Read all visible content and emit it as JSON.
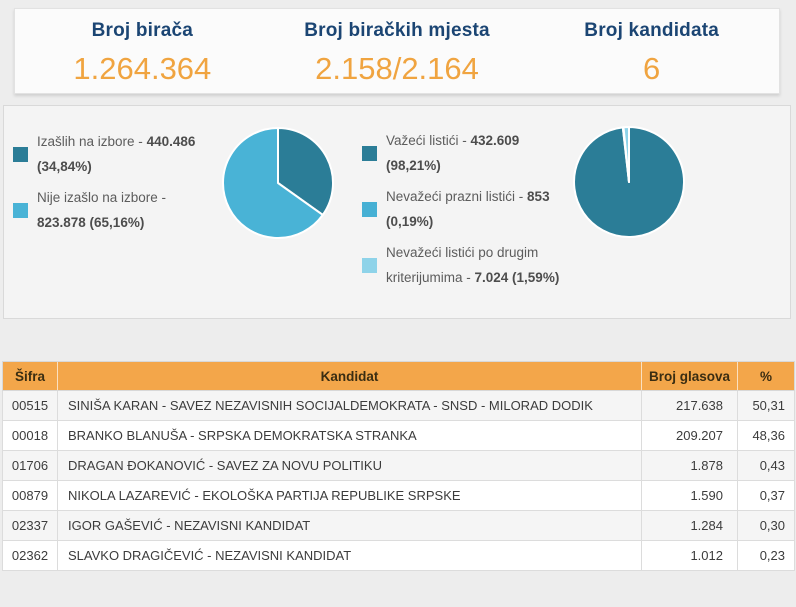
{
  "stats": [
    {
      "label": "Broj birača",
      "value": "1.264.364"
    },
    {
      "label": "Broj biračkih mjesta",
      "value": "2.158/2.164"
    },
    {
      "label": "Broj kandidata",
      "value": "6"
    }
  ],
  "colors": {
    "stat_label": "#1b4573",
    "stat_value": "#f0a440",
    "pie_dark": "#2b7d97",
    "pie_light": "#49b3d6",
    "pie_pale": "#8ed3e9",
    "table_header_bg": "#f3a64a"
  },
  "chart_data": [
    {
      "type": "pie",
      "name": "turnout",
      "slices": [
        {
          "label": "Izašlih na izbore",
          "value": 440486,
          "pct": "34,84%",
          "color": "#2b7d97"
        },
        {
          "label": "Nije izašlo na izbore",
          "value": 823878,
          "pct": "65,16%",
          "color": "#49b3d6"
        }
      ],
      "legend": [
        {
          "prefix": "Izašlih na izbore - ",
          "bold": "440.486 (34,84%)"
        },
        {
          "prefix": "Nije izašlo na izbore - ",
          "bold": "823.878 (65,16%)"
        }
      ]
    },
    {
      "type": "pie",
      "name": "ballots",
      "slices": [
        {
          "label": "Važeći listići",
          "value": 432609,
          "pct": "98,21%",
          "color": "#2b7d97"
        },
        {
          "label": "Nevažeći prazni listići",
          "value": 853,
          "pct": "0,19%",
          "color": "#46b0d4"
        },
        {
          "label": "Nevažeći listići po drugim kriterijumima",
          "value": 7024,
          "pct": "1,59%",
          "color": "#8ed3e9"
        }
      ],
      "legend": [
        {
          "prefix": "Važeći listići - ",
          "bold": "432.609 (98,21%)"
        },
        {
          "prefix": "Nevažeći prazni listići - ",
          "bold": "853 (0,19%)"
        },
        {
          "prefix": "Nevažeći listići po drugim kriterijumima - ",
          "bold": "7.024 (1,59%)"
        }
      ]
    }
  ],
  "table": {
    "headers": [
      "Šifra",
      "Kandidat",
      "Broj glasova",
      "%"
    ],
    "rows": [
      {
        "code": "00515",
        "name": "SINIŠA KARAN - SAVEZ NEZAVISNIH SOCIJALDEMOKRATA - SNSD - MILORAD DODIK",
        "votes": "217.638",
        "pct": "50,31"
      },
      {
        "code": "00018",
        "name": "BRANKO BLANUŠA - SRPSKA DEMOKRATSKA STRANKA",
        "votes": "209.207",
        "pct": "48,36"
      },
      {
        "code": "01706",
        "name": "DRAGAN ĐOKANOVIĆ - SAVEZ ZA NOVU POLITIKU",
        "votes": "1.878",
        "pct": "0,43"
      },
      {
        "code": "00879",
        "name": "NIKOLA LAZAREVIĆ - EKOLOŠKA PARTIJA REPUBLIKE SRPSKE",
        "votes": "1.590",
        "pct": "0,37"
      },
      {
        "code": "02337",
        "name": "IGOR GAŠEVIĆ - NEZAVISNI KANDIDAT",
        "votes": "1.284",
        "pct": "0,30"
      },
      {
        "code": "02362",
        "name": "SLAVKO DRAGIČEVIĆ - NEZAVISNI KANDIDAT",
        "votes": "1.012",
        "pct": "0,23"
      }
    ]
  }
}
